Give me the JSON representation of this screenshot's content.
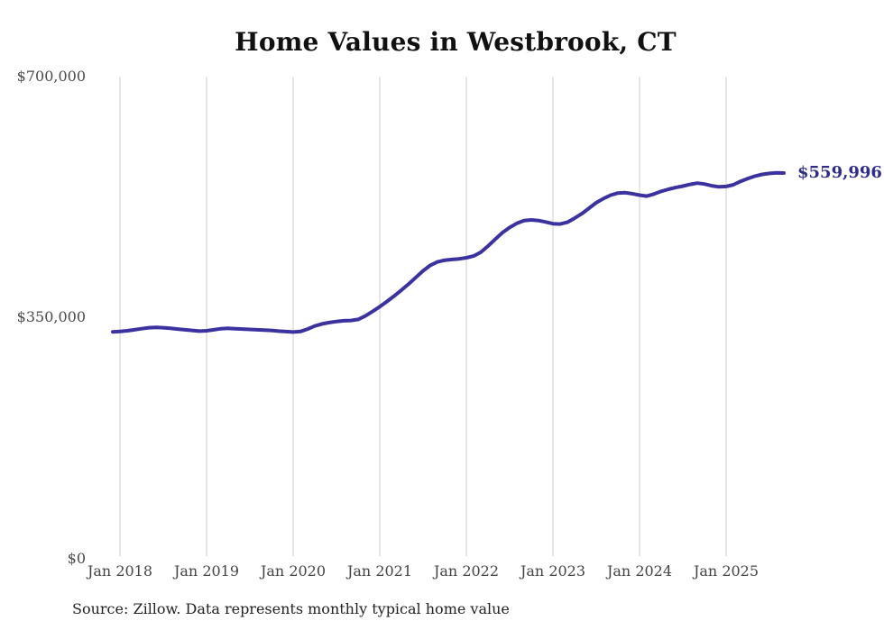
{
  "chart": {
    "title": "Home Values in Westbrook, CT",
    "end_label": "$559,996",
    "source_note": "Source: Zillow. Data represents monthly typical home value"
  },
  "chart_data": {
    "type": "line",
    "title": "Home Values in Westbrook, CT",
    "series_name": "Monthly typical home value",
    "frequency": "monthly",
    "start_month": "2017-12",
    "end_month": "2025-09",
    "values": [
      329500,
      330000,
      331000,
      332500,
      334000,
      335500,
      336000,
      335500,
      334500,
      333500,
      332500,
      331500,
      330500,
      331000,
      332500,
      334000,
      334500,
      334000,
      333500,
      333000,
      332500,
      332000,
      331500,
      330500,
      329800,
      329200,
      330000,
      333500,
      338000,
      341000,
      343000,
      344500,
      345500,
      346000,
      347500,
      352500,
      359000,
      366000,
      373500,
      381500,
      390000,
      399000,
      408500,
      418000,
      426000,
      431000,
      433500,
      434500,
      435500,
      437000,
      439500,
      445000,
      454000,
      464000,
      473500,
      481000,
      487000,
      491000,
      492000,
      491000,
      489000,
      486500,
      486000,
      488500,
      494500,
      501000,
      509000,
      517000,
      523000,
      528000,
      531000,
      531500,
      530000,
      528000,
      526500,
      529500,
      533500,
      536500,
      539000,
      541000,
      543500,
      545400,
      544000,
      541500,
      540000,
      540500,
      543000,
      548000,
      552000,
      555500,
      558000,
      559500,
      560200,
      559996
    ],
    "end_value": 559996,
    "x_tick_labels": [
      "Jan 2018",
      "Jan 2019",
      "Jan 2020",
      "Jan 2021",
      "Jan 2022",
      "Jan 2023",
      "Jan 2024",
      "Jan 2025"
    ],
    "y_tick_labels": [
      "$0",
      "$350,000",
      "$700,000"
    ],
    "ylim": [
      0,
      700000
    ],
    "grid": "vertical-only",
    "legend": "none",
    "line_color": "#3b32a0",
    "end_label_color": "#2e2d88",
    "gridline_color": "#cccccc"
  }
}
